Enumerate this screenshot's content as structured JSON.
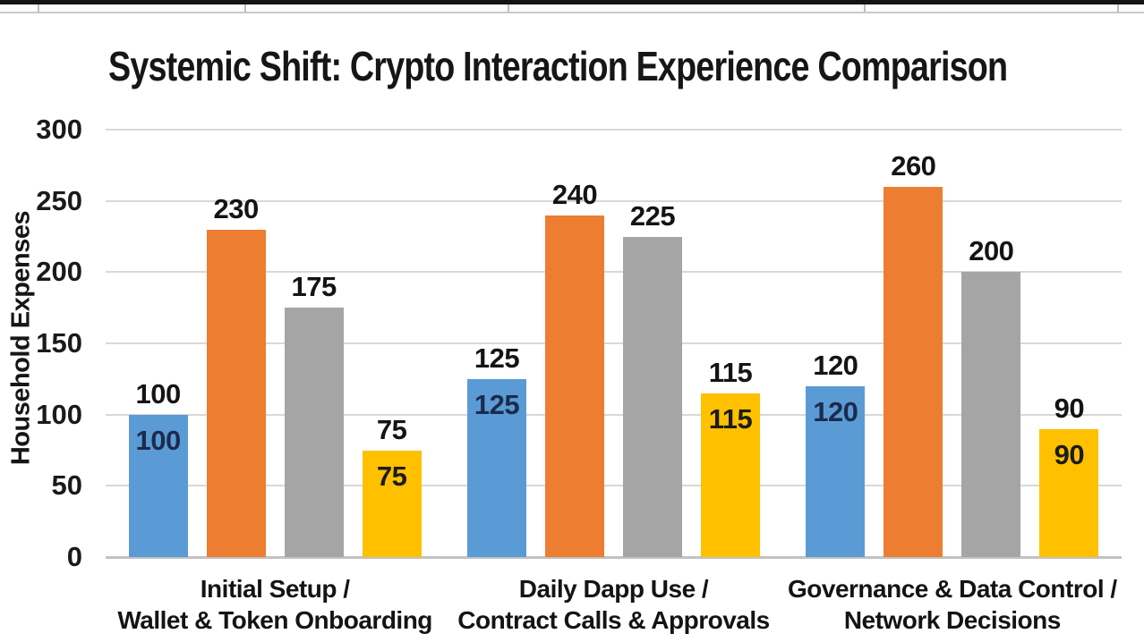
{
  "chart_data": {
    "type": "bar",
    "title": "Systemic Shift: Crypto Interaction Experience Comparison",
    "xlabel": "",
    "ylabel": "Household Expenses",
    "ylim": [
      0,
      300
    ],
    "yticks": [
      0,
      50,
      100,
      150,
      200,
      250,
      300
    ],
    "grid": true,
    "legend_position": "none",
    "categories": [
      "Initial Setup /\nWallet & Token Onboarding",
      "Daily Dapp Use /\nContract Calls & Approvals",
      "Governance & Data Control /\nNetwork Decisions"
    ],
    "series": [
      {
        "name": "blue-series",
        "color": "#5B9BD5",
        "values": [
          100,
          125,
          120
        ],
        "labels_above": true,
        "labels_inside": true,
        "inside_label_color": "#1b2b4d"
      },
      {
        "name": "orange-series",
        "color": "#ED7D31",
        "values": [
          230,
          240,
          260
        ],
        "labels_above": true,
        "labels_inside": false,
        "inside_label_color": ""
      },
      {
        "name": "gray-series",
        "color": "#A5A5A5",
        "values": [
          175,
          225,
          200
        ],
        "labels_above": true,
        "labels_inside": false,
        "inside_label_color": ""
      },
      {
        "name": "yellow-series",
        "color": "#FFC000",
        "values": [
          75,
          115,
          90
        ],
        "labels_above": true,
        "labels_inside": true,
        "inside_label_color": "#1c1c1c"
      }
    ],
    "data_label_color": "#141414"
  },
  "colors": {
    "background": "#ffffff",
    "gridline": "#d8d8d8",
    "axis_baseline": "#c2c2c2",
    "title_text": "#161616",
    "strip_top_border": "#141414",
    "strip_cell_line": "#bdbdbd"
  }
}
